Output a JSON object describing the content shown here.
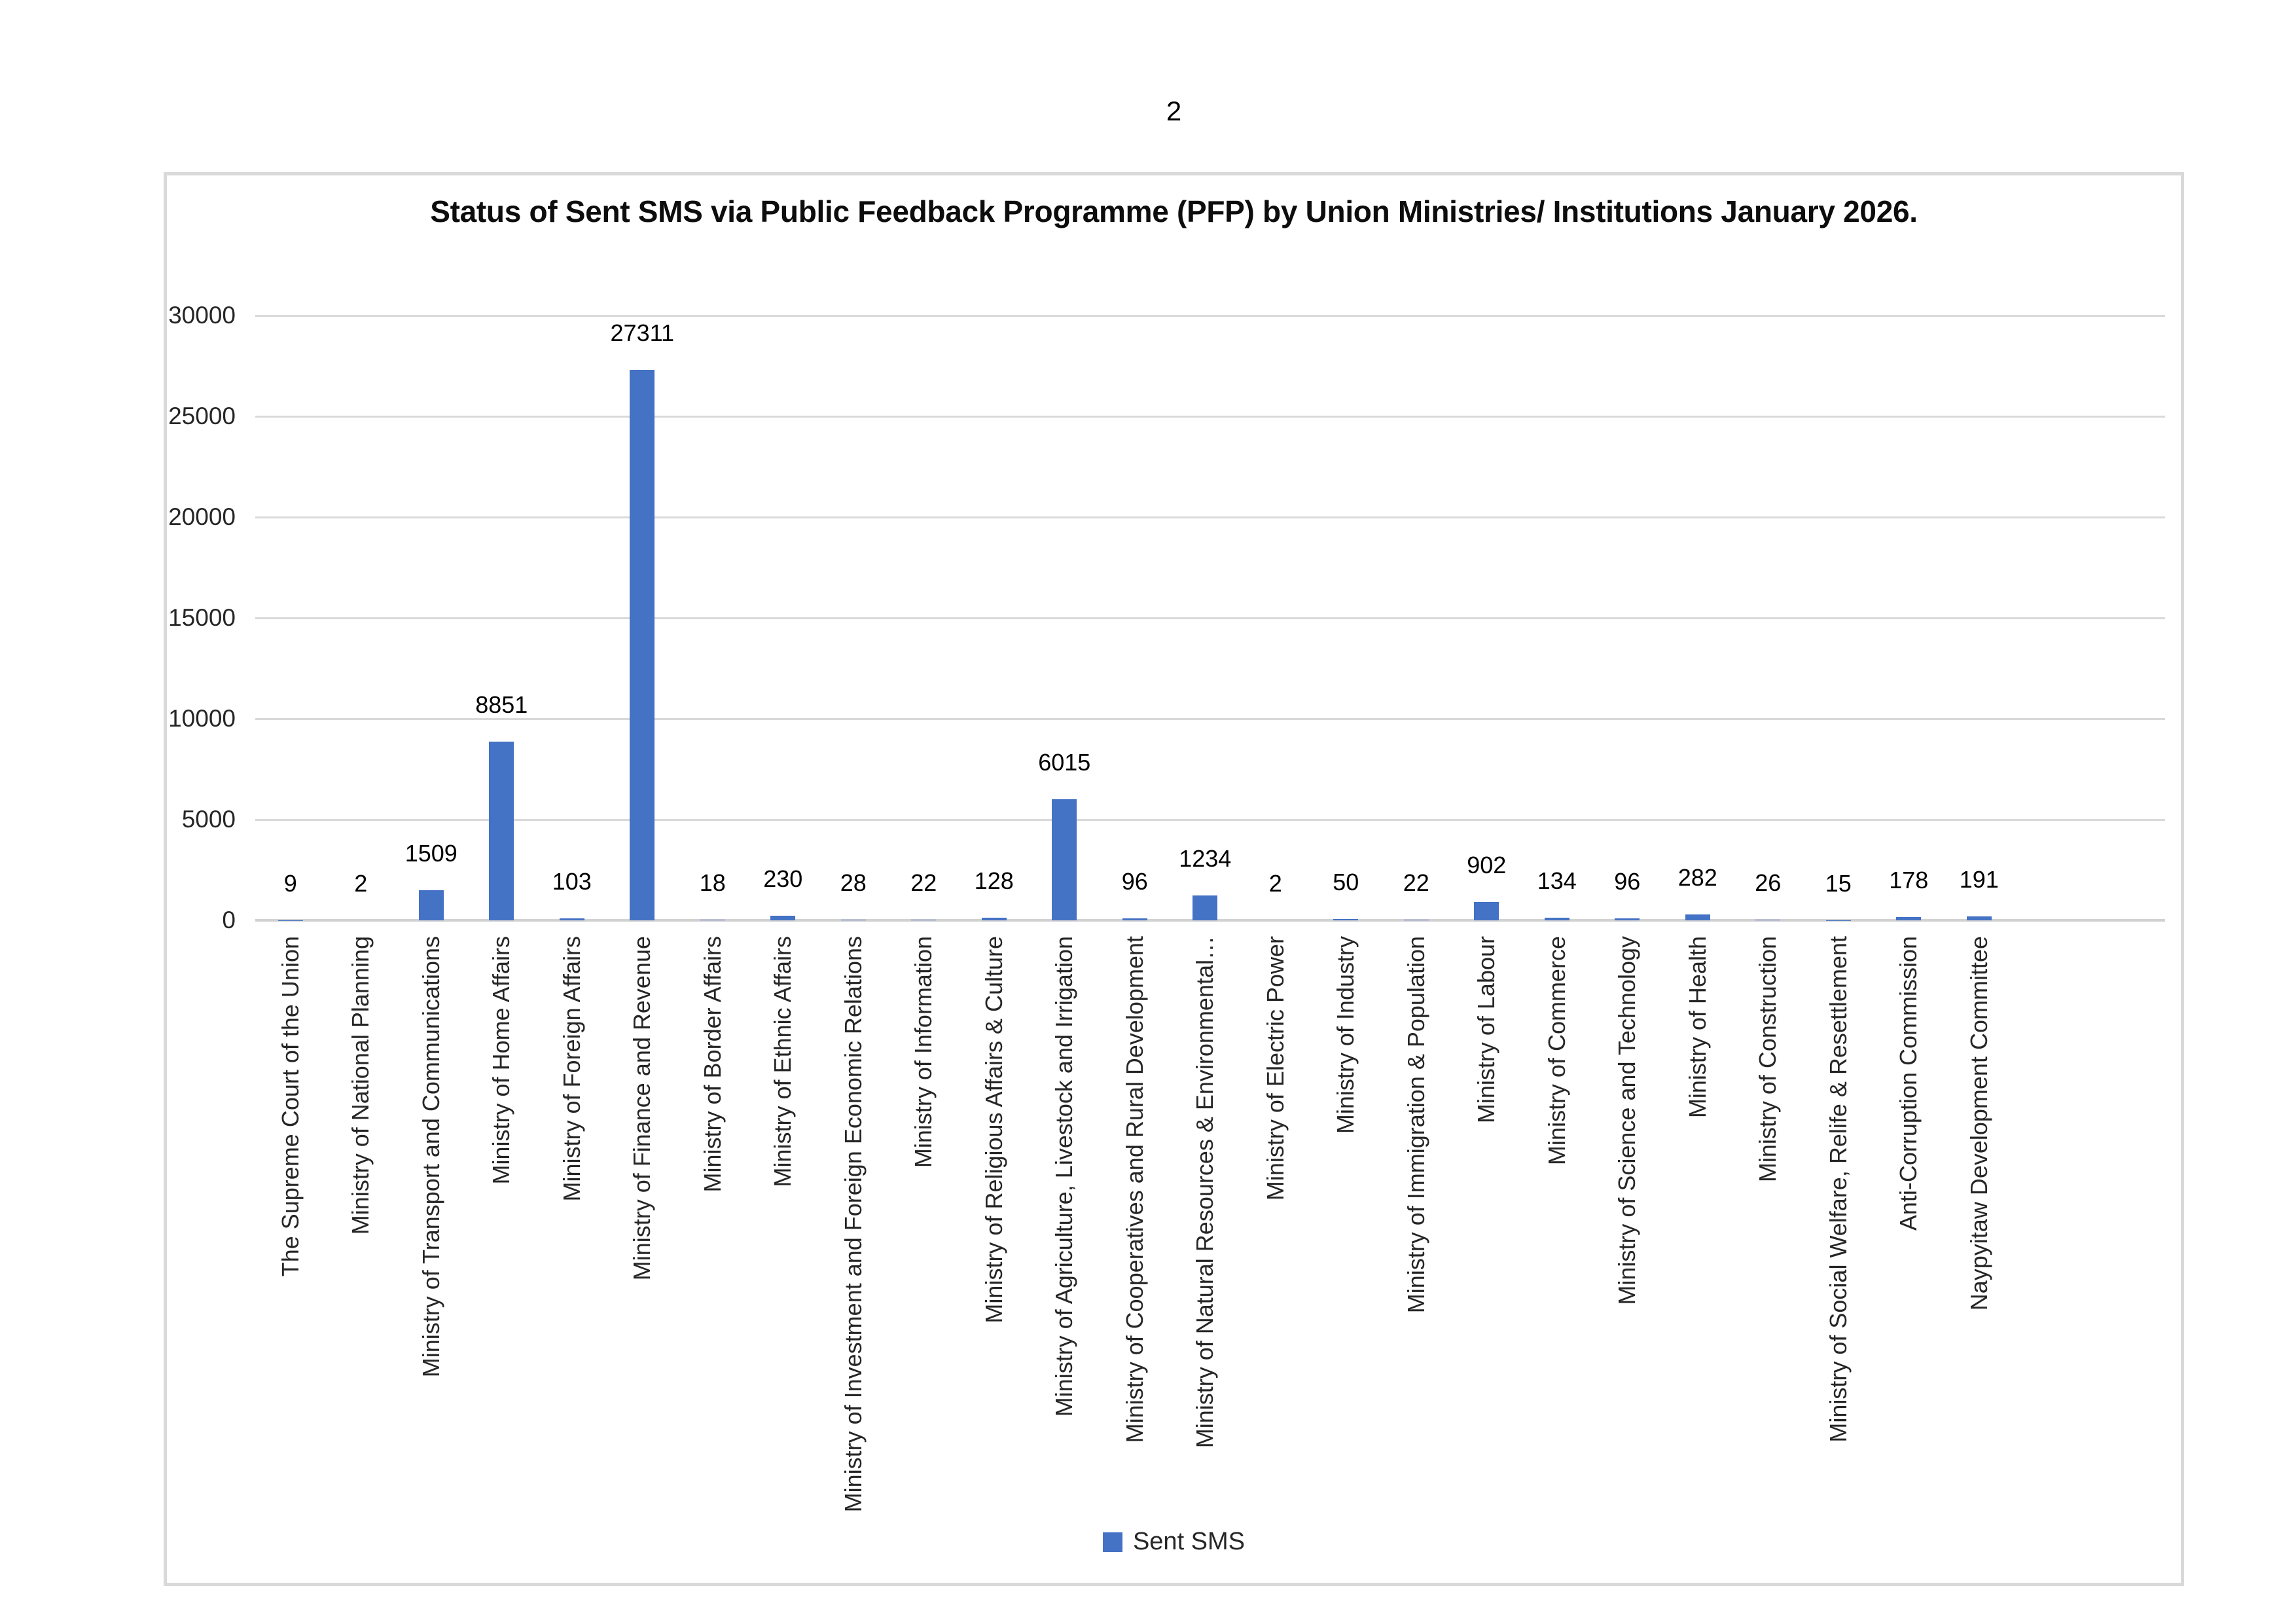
{
  "page": {
    "number": "2"
  },
  "chart_data": {
    "type": "bar",
    "title": "Status of Sent SMS via Public Feedback Programme (PFP) by Union Ministries/ Institutions January 2026.",
    "categories": [
      "The Supreme Court of the Union",
      "Ministry of National Planning",
      "Ministry of Transport and Communications",
      "Ministry of Home Affairs",
      "Ministry of Foreign Affairs",
      "Ministry of Finance and Revenue",
      "Ministry of Border Affairs",
      "Ministry of Ethnic Affairs",
      "Ministry of Investment and Foreign Economic Relations",
      "Ministry of Information",
      "Ministry of Religious Affairs & Culture",
      "Ministry of Agriculture, Livestock and Irrigation",
      "Ministry of Cooperatives and Rural Development",
      "Ministry of Natural Resources & Environmental…",
      "Ministry of Electric Power",
      "Ministry of Industry",
      "Ministry of Immigration & Population",
      "Ministry of Labour",
      "Ministry of Commerce",
      "Ministry of Science and Technology",
      "Ministry of Health",
      "Ministry of Construction",
      "Ministry of Social Welfare, Relife & Resettlement",
      "Anti-Corruption Commission",
      "Naypyitaw Development Committee"
    ],
    "values": [
      9,
      2,
      1509,
      8851,
      103,
      27311,
      18,
      230,
      28,
      22,
      128,
      6015,
      96,
      1234,
      2,
      50,
      22,
      902,
      134,
      96,
      282,
      26,
      15,
      178,
      191
    ],
    "series_name": "Sent SMS",
    "y_ticks": [
      0,
      5000,
      10000,
      15000,
      20000,
      25000,
      30000
    ],
    "ylim": [
      0,
      30000
    ],
    "xlabel": "",
    "ylabel": "",
    "grid": "horizontal",
    "data_labels": true,
    "bar_color": "#4472C4",
    "gridline_color": "#D9D9D9",
    "legend": {
      "label": "Sent SMS",
      "position": "bottom"
    }
  }
}
